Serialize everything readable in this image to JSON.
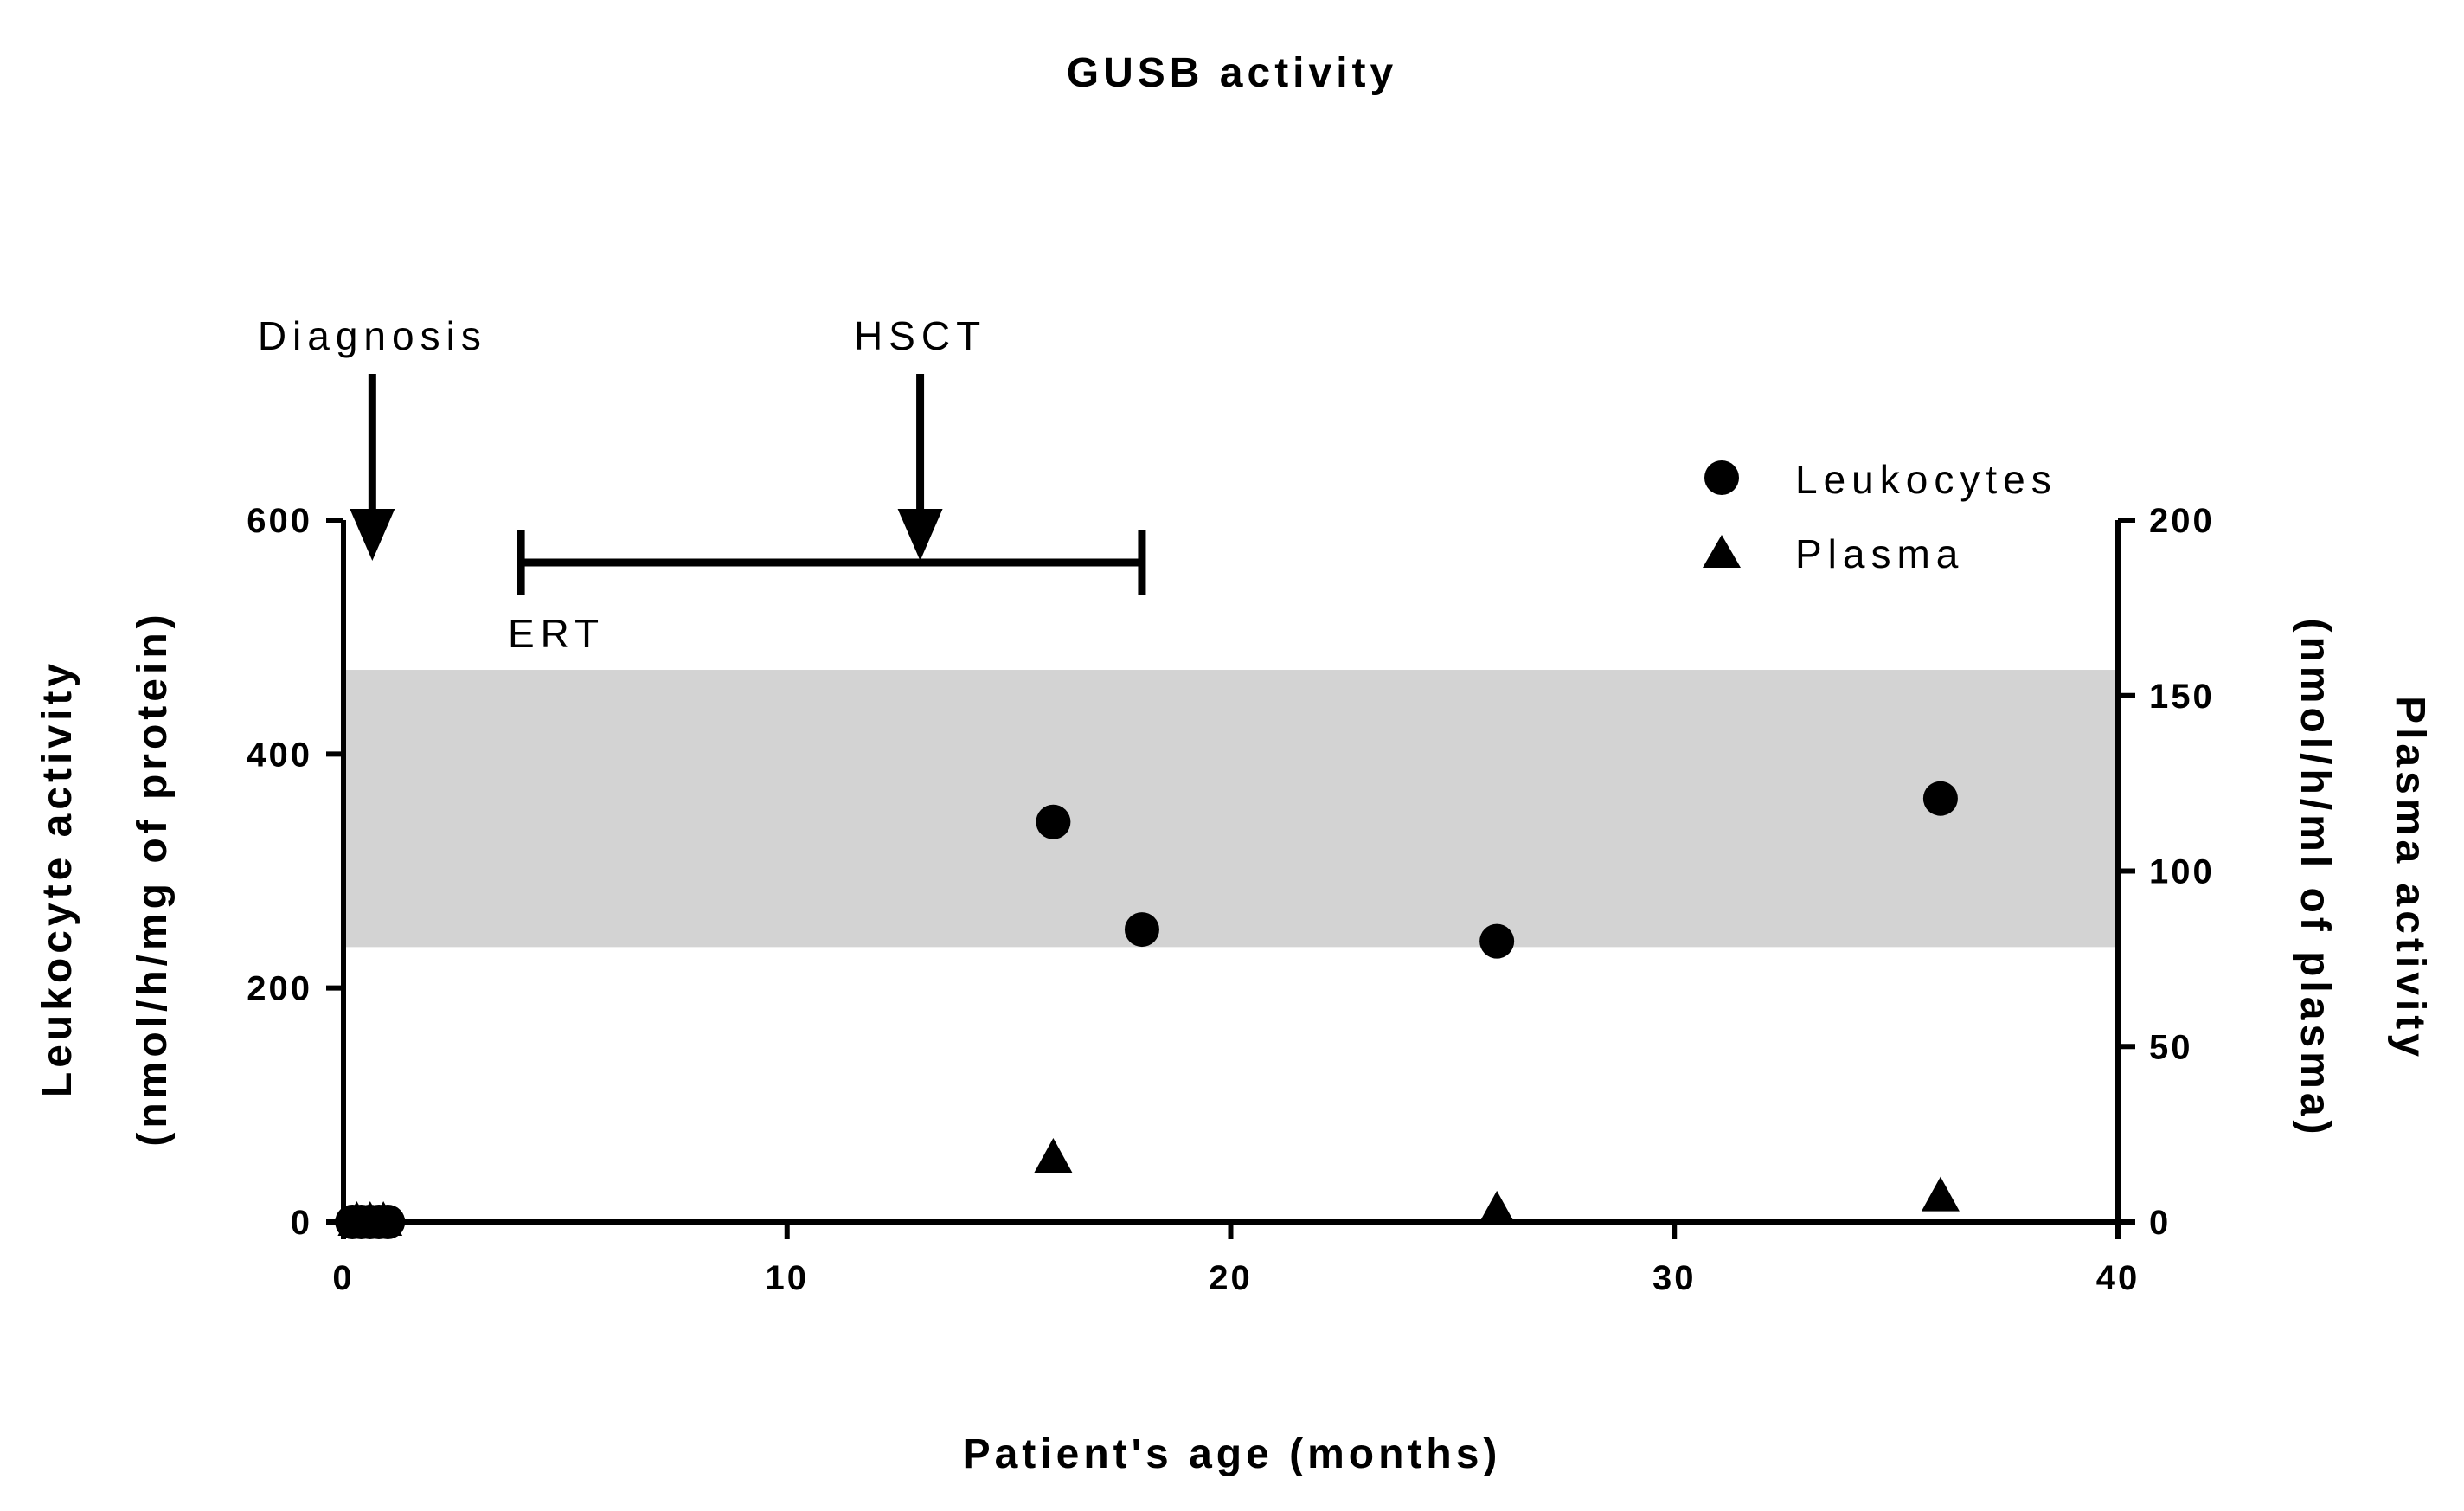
{
  "chart_data": {
    "type": "scatter",
    "title": "GUSB activity",
    "xlabel": "Patient's age (months)",
    "ylabel_left_line1": "Leukocyte activity",
    "ylabel_left_line2": "(nmol/h/mg of protein)",
    "ylabel_right_line1": "Plasma activity",
    "ylabel_right_line2": "(nmol/h/ml of plasma)",
    "xlim": [
      0,
      40
    ],
    "ylim_left": [
      0,
      600
    ],
    "ylim_right": [
      0,
      200
    ],
    "x_ticks": [
      0,
      10,
      20,
      30,
      40
    ],
    "y_left_ticks": [
      0,
      200,
      400,
      600
    ],
    "y_right_ticks": [
      0,
      50,
      100,
      150,
      200
    ],
    "reference_range": {
      "axis": "left",
      "y": [
        235,
        472
      ],
      "color": "#d3d3d3"
    },
    "series": [
      {
        "name": "Leukocytes",
        "marker": "circle",
        "axis": "left",
        "points": [
          {
            "x": 0.2,
            "y": 0
          },
          {
            "x": 0.4,
            "y": 0
          },
          {
            "x": 0.6,
            "y": 0
          },
          {
            "x": 0.8,
            "y": 0
          },
          {
            "x": 1.0,
            "y": 0
          },
          {
            "x": 16,
            "y": 342
          },
          {
            "x": 18,
            "y": 250
          },
          {
            "x": 26,
            "y": 240
          },
          {
            "x": 36,
            "y": 362
          }
        ]
      },
      {
        "name": "Plasma",
        "marker": "triangle",
        "axis": "right",
        "points": [
          {
            "x": 0.3,
            "y": 0
          },
          {
            "x": 0.6,
            "y": 0
          },
          {
            "x": 0.9,
            "y": 0
          },
          {
            "x": 16,
            "y": 18
          },
          {
            "x": 26,
            "y": 3
          },
          {
            "x": 36,
            "y": 7
          }
        ]
      }
    ],
    "annotations": [
      {
        "name": "diagnosis",
        "label": "Diagnosis",
        "type": "arrow",
        "x": 0.65
      },
      {
        "name": "hsct",
        "label": "HSCT",
        "type": "arrow",
        "x": 13
      },
      {
        "name": "ert",
        "label": "ERT",
        "type": "bracket",
        "x_start": 4,
        "x_end": 18
      }
    ],
    "legend_position": "top-right"
  }
}
